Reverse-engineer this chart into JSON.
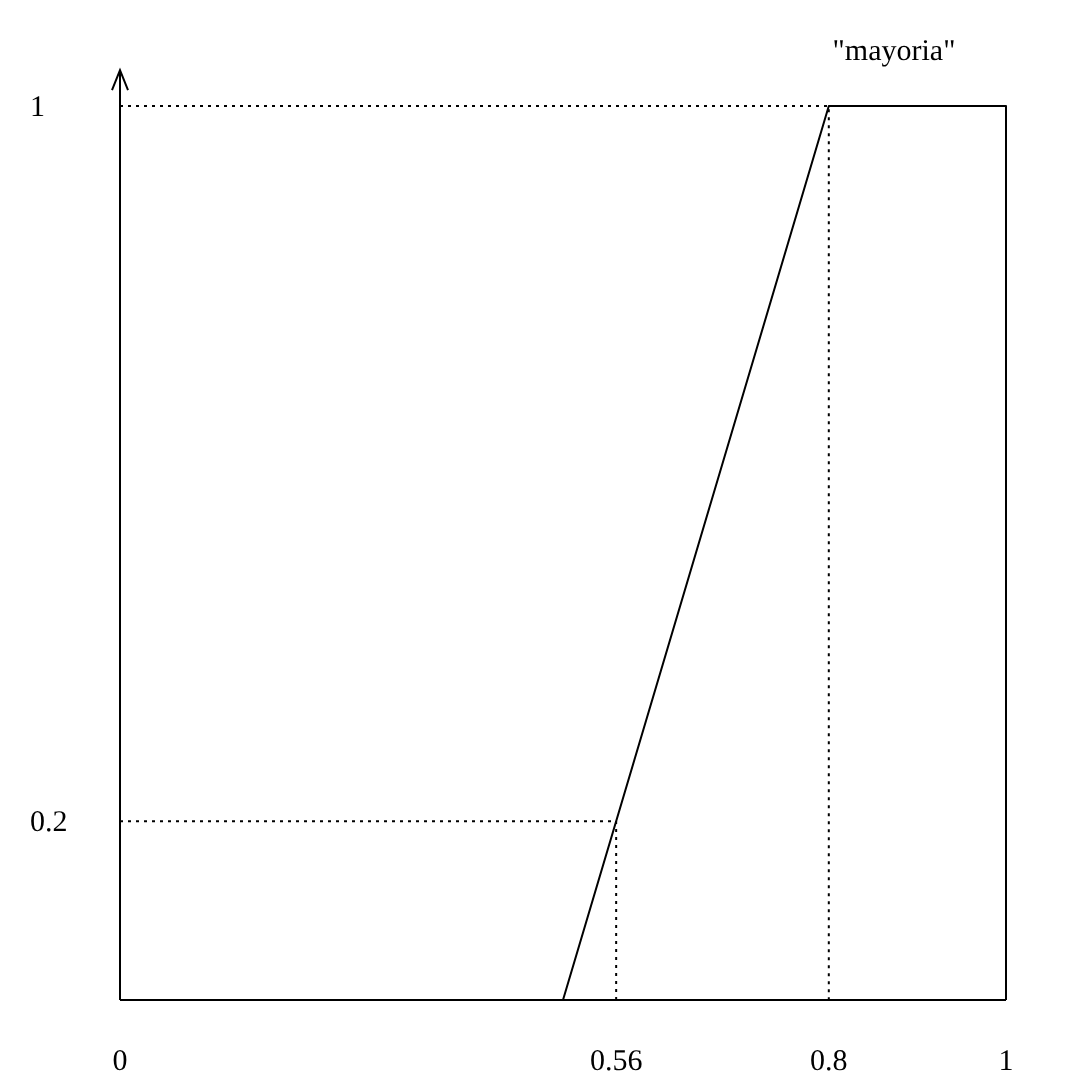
{
  "chart_data": {
    "type": "line",
    "x": [
      0.5,
      0.8,
      1,
      1
    ],
    "xlim": [
      0,
      1
    ],
    "ylim": [
      0,
      1.04
    ],
    "xticks": [
      0,
      0.56,
      0.8,
      1
    ],
    "yticks": [
      0.2,
      1
    ],
    "grid": false,
    "series": [
      {
        "color": "#000000",
        "values": [
          0,
          1,
          1,
          0
        ],
        "line_style": "solid"
      },
      {
        "type": "line",
        "color": "#000000",
        "x": [
          0,
          0.56,
          0.56
        ],
        "values": [
          0.2,
          0.2,
          0
        ],
        "line_style": "dotted"
      },
      {
        "type": "line",
        "color": "#000000",
        "x": [
          0,
          0.8,
          0.8
        ],
        "values": [
          1,
          1,
          0
        ],
        "line_style": "dotted"
      }
    ],
    "annotations": [
      "\"mayoria\""
    ]
  }
}
